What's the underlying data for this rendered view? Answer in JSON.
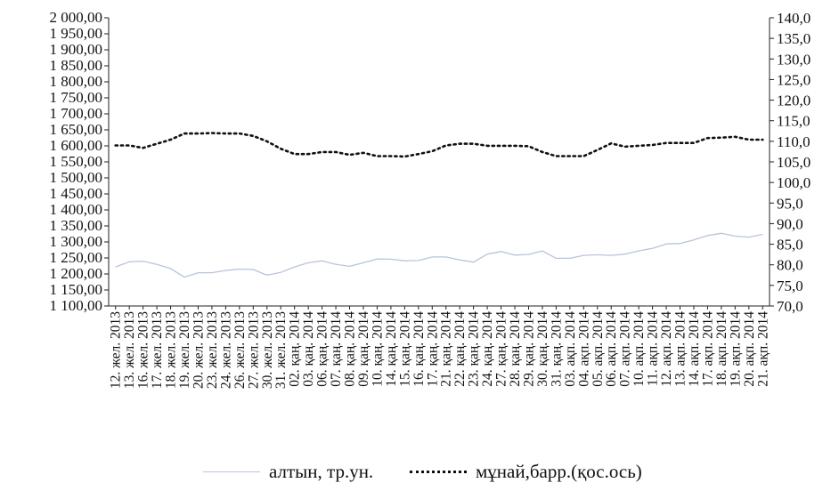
{
  "chart_data": {
    "type": "line",
    "title": "",
    "xlabel": "",
    "ylabel": "",
    "y2label": "",
    "categories": [
      "12. жел. 2013",
      "13. жел. 2013",
      "16. жел. 2013",
      "17. жел. 2013",
      "18. жел. 2013",
      "19. жел. 2013",
      "20. жел. 2013",
      "23. жел. 2013",
      "24. жел. 2013",
      "26. жел. 2013",
      "27. жел. 2013",
      "30. жел. 2013",
      "31. жел. 2013",
      "02. қаң. 2014",
      "03. қаң. 2014",
      "06. қаң. 2014",
      "07. қаң. 2014",
      "08. қаң. 2014",
      "09. қаң. 2014",
      "10. қаң. 2014",
      "14. қаң. 2014",
      "15. қаң. 2014",
      "16. қаң. 2014",
      "17. қаң. 2014",
      "21. қаң. 2014",
      "22. қаң. 2014",
      "23. қаң. 2014",
      "24. қаң. 2014",
      "27. қаң. 2014",
      "28. қаң. 2014",
      "29. қаң. 2014",
      "30. қаң. 2014",
      "31. қаң. 2014",
      "03. ақп. 2014",
      "04. ақп. 2014",
      "05. ақп. 2014",
      "06. ақп. 2014",
      "07. ақп. 2014",
      "10. ақп. 2014",
      "11. ақп. 2014",
      "12. ақп. 2014",
      "13. ақп. 2014",
      "14. ақп. 2014",
      "17. ақп. 2014",
      "18. ақп. 2014",
      "19. ақп. 2014",
      "20. ақп. 2014",
      "21. ақп. 2014"
    ],
    "y_ticks": [
      "1 100,00",
      "1 150,00",
      "1 200,00",
      "1 250,00",
      "1 300,00",
      "1 350,00",
      "1 400,00",
      "1 450,00",
      "1 500,00",
      "1 550,00",
      "1 600,00",
      "1 650,00",
      "1 700,00",
      "1 750,00",
      "1 800,00",
      "1 850,00",
      "1 900,00",
      "1 950,00",
      "2 000,00"
    ],
    "y2_ticks": [
      "70,0",
      "75,0",
      "80,0",
      "85,0",
      "90,0",
      "95,0",
      "100,0",
      "105,0",
      "110,0",
      "115,0",
      "120,0",
      "125,0",
      "130,0",
      "135,0",
      "140,0"
    ],
    "ylim": [
      1100,
      2000
    ],
    "y2lim": [
      70,
      140
    ],
    "legend_position": "bottom",
    "series": [
      {
        "name": "алтын, тр.ун.",
        "axis": "left",
        "color": "#b8c4dd",
        "style": "solid",
        "values": [
          1222,
          1238,
          1240,
          1230,
          1217,
          1190,
          1204,
          1204,
          1211,
          1215,
          1214,
          1196,
          1205,
          1222,
          1235,
          1241,
          1230,
          1224,
          1235,
          1247,
          1246,
          1241,
          1242,
          1253,
          1253,
          1244,
          1237,
          1262,
          1270,
          1259,
          1261,
          1272,
          1249,
          1249,
          1258,
          1260,
          1258,
          1262,
          1272,
          1280,
          1294,
          1295,
          1306,
          1320,
          1327,
          1318,
          1315,
          1324
        ]
      },
      {
        "name": "мұнай,барр.(қос.ось)",
        "axis": "right",
        "color": "#111111",
        "style": "dotted",
        "values": [
          109.0,
          109.0,
          108.4,
          109.4,
          110.4,
          111.9,
          111.9,
          112.0,
          111.9,
          111.9,
          111.3,
          110.0,
          108.2,
          106.9,
          106.9,
          107.4,
          107.4,
          106.7,
          107.2,
          106.4,
          106.4,
          106.3,
          106.9,
          107.6,
          109.0,
          109.4,
          109.4,
          108.9,
          108.9,
          108.9,
          108.8,
          107.4,
          106.4,
          106.4,
          106.4,
          107.9,
          109.5,
          108.7,
          108.9,
          109.1,
          109.6,
          109.6,
          109.6,
          110.8,
          110.9,
          111.1,
          110.4,
          110.4
        ]
      }
    ]
  }
}
